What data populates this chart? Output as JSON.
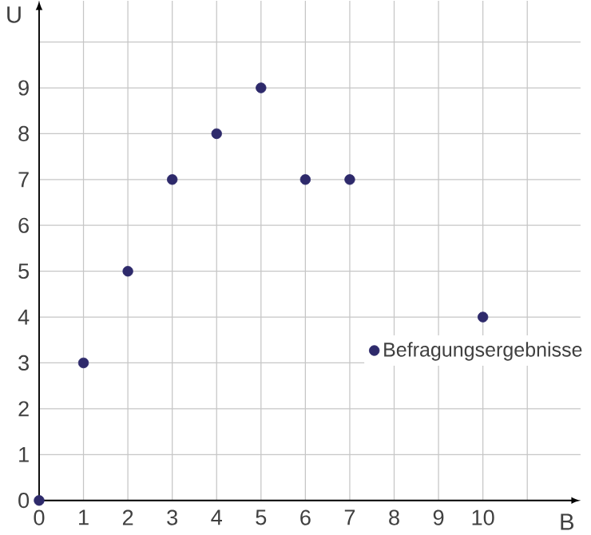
{
  "chart_data": {
    "type": "scatter",
    "xlabel": "B",
    "ylabel": "U",
    "x": [
      0,
      1,
      2,
      3,
      4,
      5,
      6,
      7,
      10
    ],
    "series": [
      {
        "name": "Befragungsergebnisse",
        "color": "#2e2a6b",
        "values": [
          0,
          3,
          5,
          7,
          8,
          9,
          7,
          7,
          4
        ]
      }
    ],
    "xlim": [
      0,
      12.2
    ],
    "ylim": [
      0,
      10.9
    ],
    "xticks": [
      0,
      1,
      2,
      3,
      4,
      5,
      6,
      7,
      8,
      9,
      10,
      {
        "value": 11,
        "label": null
      }
    ],
    "yticks": [
      0,
      1,
      2,
      3,
      4,
      5,
      6,
      7,
      8,
      9,
      {
        "value": 10,
        "label": null
      }
    ],
    "grid": true,
    "legend": "right",
    "marker": "circle"
  }
}
